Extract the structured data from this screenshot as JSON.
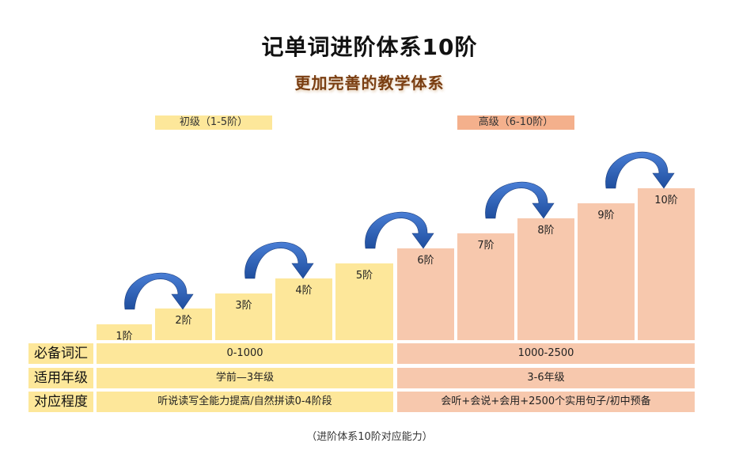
{
  "title": "记单词进阶体系10阶",
  "subtitle": "更加完善的教学体系",
  "tags": {
    "beginner": "初级（1-5阶）",
    "advanced": "高级（6-10阶）"
  },
  "steps": [
    "1阶",
    "2阶",
    "3阶",
    "4阶",
    "5阶",
    "6阶",
    "7阶",
    "8阶",
    "9阶",
    "10阶"
  ],
  "rows": [
    {
      "label": "必备词汇",
      "beginner": "0-1000",
      "advanced": "1000-2500"
    },
    {
      "label": "适用年级",
      "beginner": "学前—3年级",
      "advanced": "3-6年级"
    },
    {
      "label": "对应程度",
      "beginner": "听说读写全能力提高/自然拼读0-4阶段",
      "advanced": "会听+会说+会用+2500个实用句子/初中预备"
    }
  ],
  "caption": "（进阶体系10阶对应能力）",
  "colors": {
    "beginner": "#fde79a",
    "advanced": "#f7c8ad",
    "advanced_tag": "#f4b08c",
    "arrow": "#2f5fb8"
  }
}
